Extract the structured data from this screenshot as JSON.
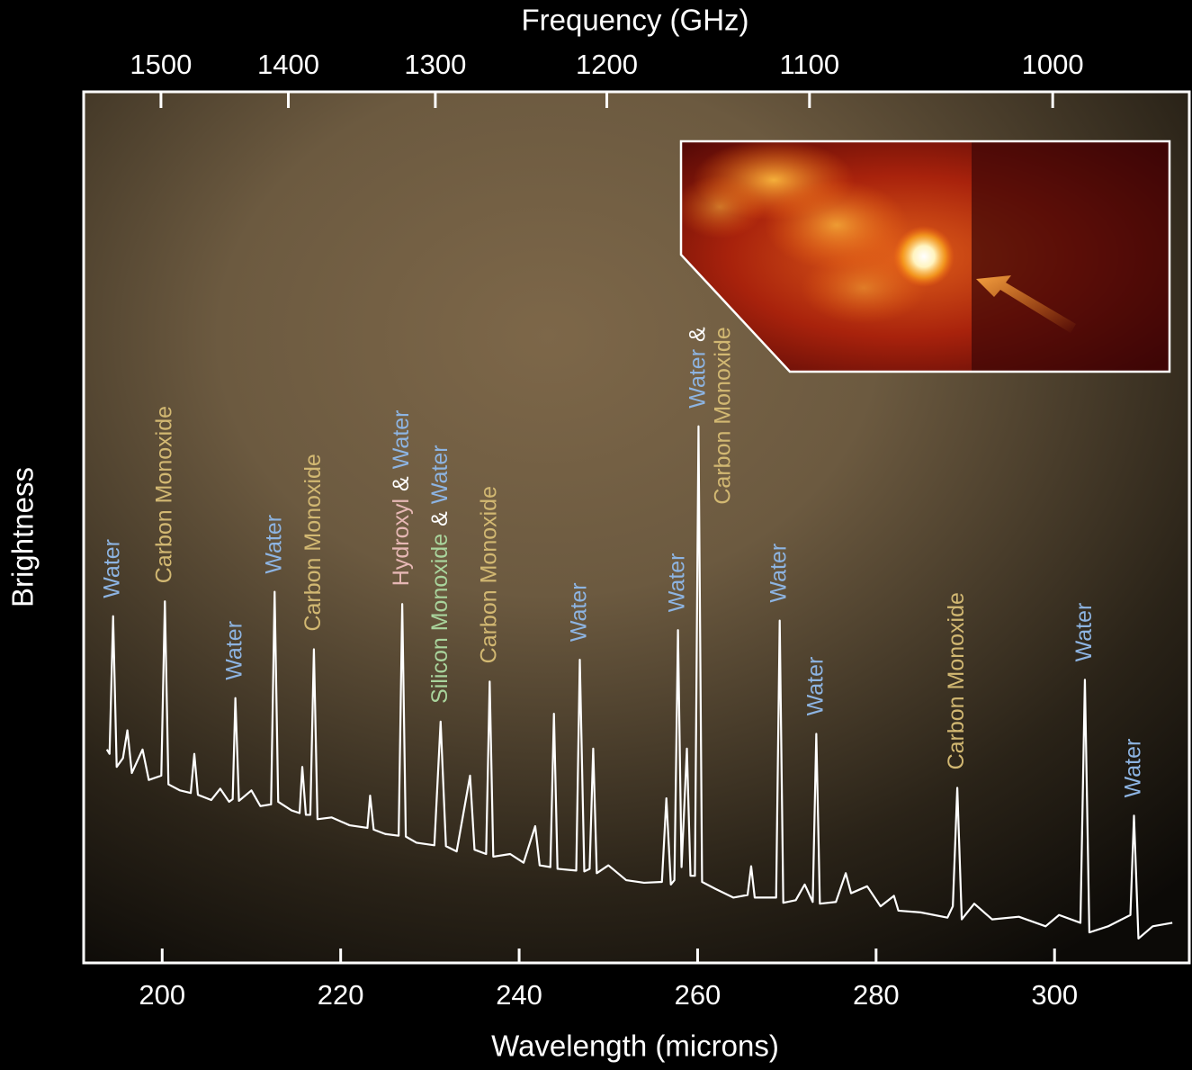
{
  "chart_data": {
    "type": "line",
    "xlabel": "Wavelength (microns)",
    "x2label": "Frequency (GHz)",
    "ylabel": "Brightness",
    "xlim": [
      191.2,
      315.1
    ],
    "xticks": [
      200,
      220,
      240,
      260,
      280,
      300
    ],
    "x2ticks": [
      1500,
      1400,
      1300,
      1200,
      1100,
      1000
    ],
    "ylim": [
      0,
      100
    ],
    "color": "#ffffff",
    "x": [
      193.8,
      194.1,
      194.5,
      194.9,
      195.6,
      196.1,
      196.6,
      197.8,
      198.5,
      199.9,
      200.3,
      200.7,
      202,
      203.2,
      203.6,
      204,
      205.5,
      206.5,
      207.5,
      207.9,
      208.2,
      208.6,
      210,
      211,
      212.2,
      212.6,
      213,
      214.5,
      215.4,
      215.7,
      216.1,
      216.6,
      217.0,
      217.4,
      219,
      221,
      223,
      223.3,
      223.7,
      225,
      226.5,
      226.9,
      227.3,
      228.5,
      230.5,
      231.2,
      231.8,
      233,
      234.5,
      235,
      236.3,
      236.7,
      237.1,
      239,
      240.5,
      241.8,
      242.3,
      243.5,
      243.9,
      244.3,
      246.4,
      246.8,
      247.3,
      247.9,
      248.3,
      248.7,
      250,
      252,
      254,
      256,
      256.5,
      257,
      257.4,
      257.8,
      258.2,
      258.8,
      259.2,
      259.7,
      260.1,
      260.5,
      262,
      264,
      265.6,
      266.0,
      266.4,
      268.8,
      269.2,
      269.6,
      271,
      272,
      272.9,
      273.3,
      273.7,
      275.5,
      276.6,
      277.2,
      279,
      280.5,
      282.0,
      282.5,
      285,
      288,
      288.6,
      289.1,
      289.6,
      291,
      293,
      296,
      299,
      300.5,
      302.9,
      303.4,
      303.9,
      306,
      308.5,
      308.9,
      309.4,
      311,
      313.2
    ],
    "values": [
      24.5,
      24,
      39.8,
      22.5,
      23.5,
      26.7,
      21.8,
      24.5,
      21,
      21.5,
      41.5,
      20.5,
      19.8,
      19.5,
      24.0,
      19.3,
      18.7,
      20,
      18.5,
      18.8,
      30.4,
      18.6,
      19.8,
      18,
      18.2,
      42.6,
      18.5,
      17.5,
      17.2,
      22.5,
      17.0,
      17,
      36.0,
      16.5,
      16.7,
      15.8,
      15.5,
      19.2,
      15.3,
      14.8,
      14.6,
      41.2,
      14.5,
      13.8,
      13.5,
      27.7,
      13.4,
      12.8,
      21.5,
      13.0,
      12.5,
      32.3,
      12.2,
      12.5,
      11.5,
      15.7,
      11.2,
      11.0,
      28.6,
      10.8,
      10.6,
      34.8,
      10.5,
      10.8,
      24.6,
      10.3,
      11.2,
      9.5,
      9.2,
      9.3,
      18.9,
      9.0,
      9.5,
      38.2,
      11,
      24.6,
      10,
      10,
      61.6,
      9.3,
      8.5,
      7.5,
      7.8,
      11.1,
      7.5,
      7.5,
      39.3,
      6.9,
      7.2,
      9,
      7.0,
      26.3,
      6.8,
      7.0,
      10.3,
      8.0,
      8.8,
      6.5,
      7.7,
      6.0,
      5.8,
      5.2,
      6.5,
      20.1,
      5.0,
      6.8,
      5.0,
      5.3,
      4.2,
      5.5,
      4.6,
      32.5,
      3.5,
      4.2,
      5.5,
      16.9,
      2.8,
      4.2,
      4.6
    ],
    "annotations": [
      {
        "x": 194.5,
        "lines": [
          [
            {
              "text": "Water",
              "color": "#8db4e2"
            }
          ]
        ]
      },
      {
        "x": 200.3,
        "lines": [
          [
            {
              "text": "Carbon Monoxide",
              "color": "#d2b872"
            }
          ]
        ]
      },
      {
        "x": 208.2,
        "lines": [
          [
            {
              "text": "Water",
              "color": "#8db4e2"
            }
          ]
        ]
      },
      {
        "x": 212.6,
        "lines": [
          [
            {
              "text": "Water",
              "color": "#8db4e2"
            }
          ]
        ]
      },
      {
        "x": 217.0,
        "lines": [
          [
            {
              "text": "Carbon Monoxide",
              "color": "#d2b872"
            }
          ]
        ]
      },
      {
        "x": 226.9,
        "lines": [
          [
            {
              "text": "Hydroxyl",
              "color": "#e6b7b4"
            },
            {
              "text": "&",
              "color": "#ffffff"
            },
            {
              "text": "Water",
              "color": "#8db4e2"
            }
          ]
        ]
      },
      {
        "x": 231.2,
        "lines": [
          [
            {
              "text": "Silicon Monoxide",
              "color": "#a9d49c"
            },
            {
              "text": "&",
              "color": "#ffffff"
            },
            {
              "text": "Water",
              "color": "#8db4e2"
            }
          ]
        ]
      },
      {
        "x": 236.7,
        "lines": [
          [
            {
              "text": "Carbon Monoxide",
              "color": "#d2b872"
            }
          ]
        ]
      },
      {
        "x": 246.8,
        "lines": [
          [
            {
              "text": "Water",
              "color": "#8db4e2"
            }
          ]
        ]
      },
      {
        "x": 257.8,
        "lines": [
          [
            {
              "text": "Water",
              "color": "#8db4e2"
            }
          ]
        ]
      },
      {
        "x": 260.1,
        "lines": [
          [
            {
              "text": "Water",
              "color": "#8db4e2"
            },
            {
              "text": "&",
              "color": "#ffffff"
            }
          ],
          [
            {
              "text": "Carbon Monoxide",
              "color": "#d2b872"
            }
          ]
        ]
      },
      {
        "x": 269.2,
        "lines": [
          [
            {
              "text": "Water",
              "color": "#8db4e2"
            }
          ]
        ]
      },
      {
        "x": 273.3,
        "lines": [
          [
            {
              "text": "Water",
              "color": "#8db4e2"
            }
          ]
        ]
      },
      {
        "x": 289.1,
        "lines": [
          [
            {
              "text": "Carbon Monoxide",
              "color": "#d2b872"
            }
          ]
        ]
      },
      {
        "x": 303.4,
        "lines": [
          [
            {
              "text": "Water",
              "color": "#8db4e2"
            }
          ]
        ]
      },
      {
        "x": 308.9,
        "lines": [
          [
            {
              "text": "Water",
              "color": "#8db4e2"
            }
          ]
        ]
      }
    ]
  }
}
